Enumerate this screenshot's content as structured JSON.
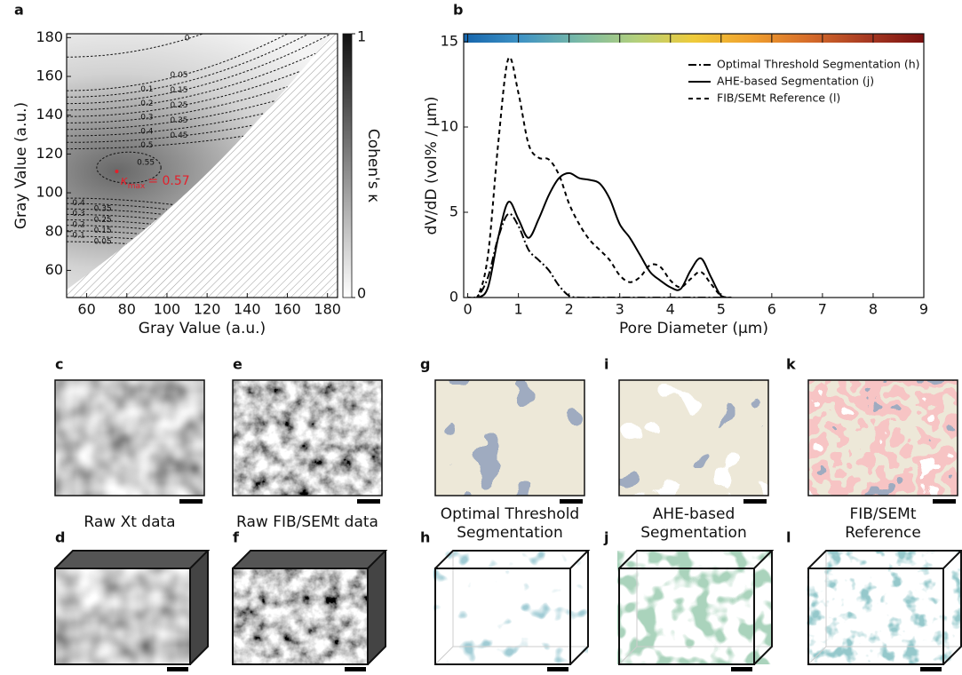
{
  "chart_data": [
    {
      "type": "contour",
      "panel": "a",
      "xlabel": "Gray Value (a.u.)",
      "ylabel": "Gray Value (a.u.)",
      "xlim": [
        50,
        185
      ],
      "ylim": [
        46,
        182
      ],
      "xticks": [
        60,
        80,
        100,
        120,
        140,
        160,
        180
      ],
      "yticks": [
        60,
        80,
        100,
        120,
        140,
        160,
        180
      ],
      "levels": [
        0,
        0.05,
        0.1,
        0.15,
        0.2,
        0.25,
        0.3,
        0.35,
        0.4,
        0.45,
        0.5,
        0.55
      ],
      "max": {
        "x": 75,
        "y": 111,
        "symbol": "κ",
        "subscript": "max",
        "label": "= 0.57",
        "color": "#e3202b"
      },
      "colorbar": {
        "label": "Cohen's κ",
        "ticks": [
          0,
          1
        ]
      }
    },
    {
      "type": "line",
      "panel": "b",
      "xlabel": "Pore Diameter (μm)",
      "ylabel": "dV/dD (vol% / μm)",
      "xlim": [
        -0.08,
        9
      ],
      "ylim": [
        0,
        15.47
      ],
      "xticks": [
        0,
        1,
        2,
        3,
        4,
        5,
        6,
        7,
        8,
        9
      ],
      "yticks": [
        0,
        5,
        10,
        15
      ],
      "colorbar_colors": [
        "#1565ad",
        "#3f93c4",
        "#79b9a6",
        "#b3d07c",
        "#efcb3a",
        "#f0a02e",
        "#d66c2a",
        "#a83a22",
        "#7a1010"
      ],
      "x": [
        0,
        0.2,
        0.4,
        0.6,
        0.8,
        1.0,
        1.2,
        1.4,
        1.6,
        1.8,
        2.0,
        2.2,
        2.4,
        2.6,
        2.8,
        3.0,
        3.2,
        3.4,
        3.6,
        3.8,
        4.0,
        4.2,
        4.4,
        4.6,
        4.8,
        5.0,
        5.2
      ],
      "series": [
        {
          "name": "Optimal Threshold Segmentation (h)",
          "color": "#000000",
          "dash": "dash-dot",
          "values": [
            0,
            0.1,
            1.2,
            3.5,
            4.9,
            4.2,
            2.8,
            2.2,
            1.6,
            0.7,
            0.1,
            0,
            0,
            0,
            0,
            0,
            0,
            0,
            0,
            0,
            0,
            0,
            0,
            0,
            0,
            0,
            0
          ]
        },
        {
          "name": "AHE-based Segmentation (j)",
          "color": "#000000",
          "dash": "solid",
          "values": [
            0,
            0,
            0.6,
            3.5,
            5.6,
            4.6,
            3.5,
            4.6,
            6.0,
            7.0,
            7.3,
            7.0,
            6.9,
            6.7,
            5.8,
            4.3,
            3.5,
            2.5,
            1.5,
            1.0,
            0.6,
            0.5,
            1.6,
            2.3,
            1.2,
            0.1,
            0
          ]
        },
        {
          "name": "FIB/SEMt Reference (l)",
          "color": "#000000",
          "dash": "dashed",
          "values": [
            0,
            0.1,
            2.5,
            9,
            14,
            12,
            9,
            8.2,
            8.1,
            7.2,
            5.5,
            4.3,
            3.4,
            2.8,
            2.2,
            1.3,
            0.9,
            1.2,
            1.9,
            1.8,
            1.0,
            0.6,
            1.1,
            1.5,
            0.8,
            0.1,
            0
          ]
        }
      ]
    }
  ],
  "panels": {
    "top": [
      {
        "letter": "c",
        "caption": [
          "Raw Xt data"
        ]
      },
      {
        "letter": "e",
        "caption": [
          "Raw FIB/SEMt data"
        ]
      },
      {
        "letter": "g",
        "caption": [
          "Optimal Threshold",
          "Segmentation"
        ]
      },
      {
        "letter": "i",
        "caption": [
          "AHE-based",
          "Segmentation"
        ]
      },
      {
        "letter": "k",
        "caption": [
          "FIB/SEMt",
          "Reference"
        ]
      }
    ],
    "bottom": [
      {
        "letter": "d"
      },
      {
        "letter": "f"
      },
      {
        "letter": "h"
      },
      {
        "letter": "j"
      },
      {
        "letter": "l"
      }
    ]
  }
}
